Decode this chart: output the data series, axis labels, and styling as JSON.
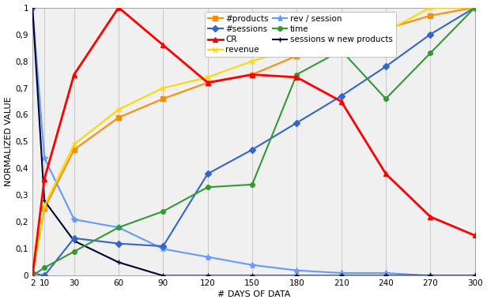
{
  "x": [
    2,
    10,
    30,
    60,
    90,
    120,
    150,
    180,
    210,
    240,
    270,
    300
  ],
  "series": {
    "#products": {
      "y": [
        0.0,
        0.25,
        0.47,
        0.59,
        0.66,
        0.72,
        0.75,
        0.82,
        0.89,
        0.92,
        0.97,
        1.0
      ],
      "color": "#FF8C00",
      "marker": "s",
      "linewidth": 1.5,
      "markersize": 4,
      "zorder": 3
    },
    "#sessions": {
      "y": [
        0.01,
        0.0,
        0.14,
        0.12,
        0.11,
        0.38,
        0.47,
        0.57,
        0.67,
        0.78,
        0.9,
        1.0
      ],
      "color": "#3366CC",
      "marker": "D",
      "linewidth": 1.5,
      "markersize": 4,
      "zorder": 3
    },
    "CR": {
      "y": [
        0.0,
        0.36,
        0.75,
        1.0,
        0.86,
        0.72,
        0.75,
        0.74,
        0.65,
        0.38,
        0.22,
        0.15
      ],
      "color": "#FF0000",
      "marker": "^",
      "linewidth": 2.0,
      "markersize": 5,
      "zorder": 4
    },
    "revenue": {
      "y": [
        0.0,
        0.26,
        0.49,
        0.62,
        0.7,
        0.74,
        0.8,
        0.85,
        0.9,
        0.91,
        1.0,
        1.0
      ],
      "color": "#FFD700",
      "marker": "x",
      "linewidth": 1.5,
      "markersize": 5,
      "zorder": 3
    },
    "rev / session": {
      "y": [
        1.0,
        0.44,
        0.21,
        0.18,
        0.1,
        0.07,
        0.04,
        0.02,
        0.01,
        0.01,
        0.0,
        0.0
      ],
      "color": "#6699FF",
      "marker": "*",
      "linewidth": 1.5,
      "markersize": 6,
      "zorder": 3
    },
    "time": {
      "y": [
        0.0,
        0.03,
        0.09,
        0.18,
        0.24,
        0.33,
        0.34,
        0.75,
        0.84,
        0.66,
        0.83,
        1.0
      ],
      "color": "#339933",
      "marker": "o",
      "linewidth": 1.5,
      "markersize": 4,
      "zorder": 3
    },
    "sessions w new products": {
      "y": [
        1.0,
        0.28,
        0.13,
        0.05,
        0.0,
        0.0,
        0.0,
        0.0,
        0.0,
        0.0,
        0.0,
        0.0
      ],
      "color": "#000033",
      "marker": "+",
      "linewidth": 1.5,
      "markersize": 5,
      "zorder": 3
    }
  },
  "col1": [
    "#products",
    "CR",
    "rev / session",
    "sessions w new products"
  ],
  "col2": [
    "#sessions",
    "revenue",
    "time"
  ],
  "xlabel": "# DAYS OF DATA",
  "ylabel": "NORMALIZED VALUE",
  "yticks": [
    0,
    0.1,
    0.2,
    0.3,
    0.4,
    0.5,
    0.6,
    0.7,
    0.8,
    0.9,
    1.0
  ],
  "ytick_labels": [
    "0",
    "0,1",
    "0,2",
    "0,3",
    "0,4",
    "0,5",
    "0,6",
    "0,7",
    "0,8",
    "0,9",
    "1"
  ],
  "xticks": [
    2,
    10,
    30,
    60,
    90,
    120,
    150,
    180,
    210,
    240,
    270,
    300
  ],
  "xlim": [
    2,
    300
  ],
  "ylim": [
    0,
    1.0
  ],
  "background_color": "#FFFFFF",
  "plot_bg_color": "#F0F0F0",
  "grid_color": "#CCCCCC",
  "axis_label_fontsize": 8,
  "tick_fontsize": 7.5,
  "legend_fontsize": 7.5
}
